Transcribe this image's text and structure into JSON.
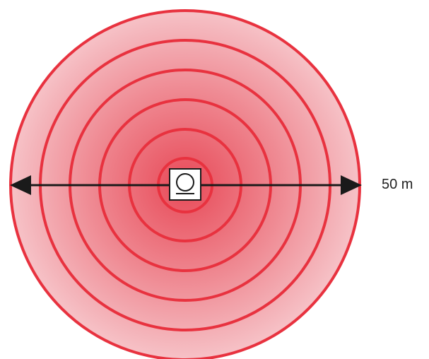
{
  "range_label": "50 m",
  "colors": {
    "ring_stroke": "#e8323f",
    "fill_center": "#e84a58",
    "fill_mid": "#ef8a93",
    "fill_edge": "#f6c2c7",
    "arrow": "#1a1a1a",
    "device_fill": "#ffffff",
    "device_stroke": "#1a1a1a"
  },
  "icons": {
    "center_device": "circular-speaker-device-icon"
  }
}
